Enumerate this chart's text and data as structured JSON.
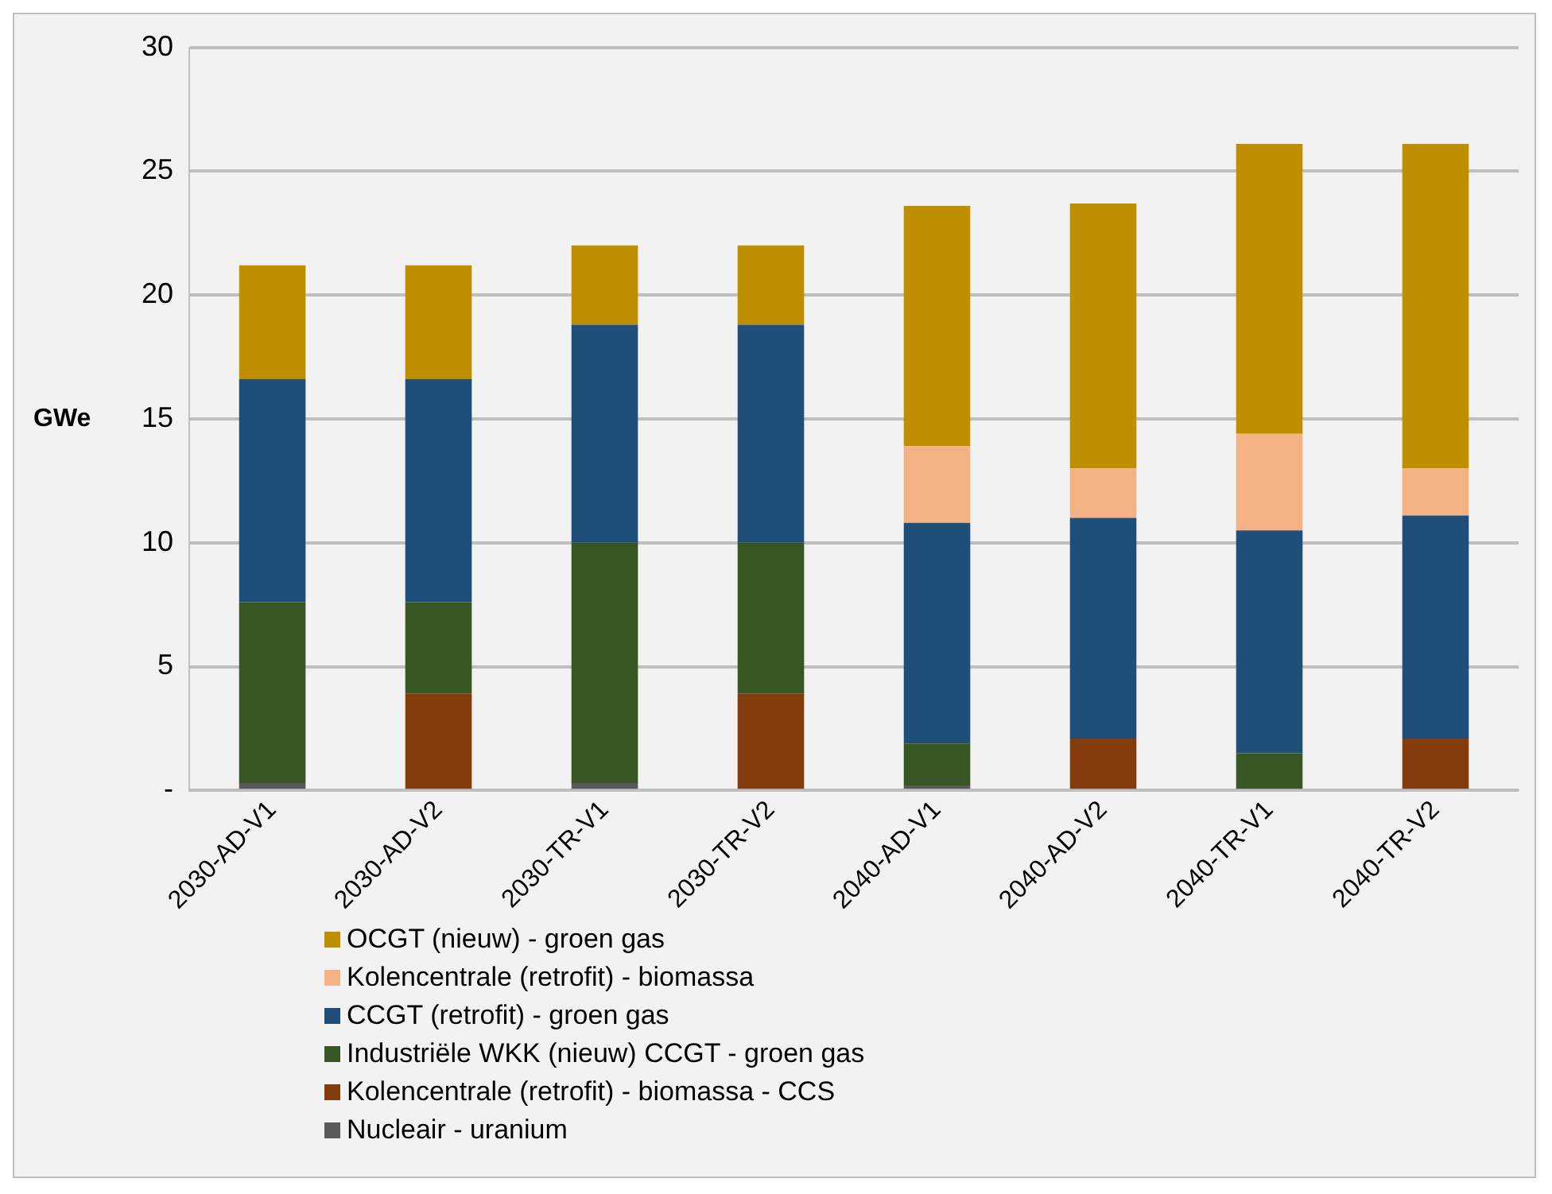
{
  "chart_data": {
    "type": "bar",
    "stacked": true,
    "ylabel": "GWe",
    "categories": [
      "2030-AD-V1",
      "2030-AD-V2",
      "2030-TR-V1",
      "2030-TR-V2",
      "2040-AD-V1",
      "2040-AD-V2",
      "2040-TR-V1",
      "2040-TR-V2"
    ],
    "series": [
      {
        "name": "Nucleair - uranium",
        "color": "#595959",
        "values": [
          0.3,
          null,
          0.3,
          null,
          0.2,
          null,
          null,
          null
        ]
      },
      {
        "name": "Kolencentrale (retrofit) - biomassa - CCS",
        "color": "#843c0c",
        "values": [
          null,
          3.9,
          null,
          3.9,
          null,
          2.1,
          null,
          2.1
        ]
      },
      {
        "name": "Industriële WKK (nieuw) CCGT - groen gas",
        "color": "#375623",
        "values": [
          7.3,
          3.7,
          9.7,
          6.1,
          1.7,
          null,
          1.5,
          null
        ]
      },
      {
        "name": "CCGT (retrofit) - groen gas",
        "color": "#1f4e79",
        "values": [
          9.0,
          9.0,
          8.8,
          8.8,
          8.9,
          8.9,
          9.0,
          9.0
        ]
      },
      {
        "name": "Kolencentrale (retrofit) - biomassa",
        "color": "#f4b183",
        "values": [
          null,
          null,
          null,
          null,
          3.1,
          2.0,
          3.9,
          1.9
        ]
      },
      {
        "name": "OCGT (nieuw) - groen gas",
        "color": "#bf8f00",
        "values": [
          4.6,
          4.6,
          3.2,
          3.2,
          9.7,
          10.7,
          11.7,
          13.1
        ]
      }
    ],
    "ylim": [
      0,
      30
    ],
    "yticks": [
      {
        "value": 0,
        "label": "-"
      },
      5,
      10,
      15,
      20,
      25,
      30
    ],
    "grid": "y",
    "legend": "bottom"
  }
}
